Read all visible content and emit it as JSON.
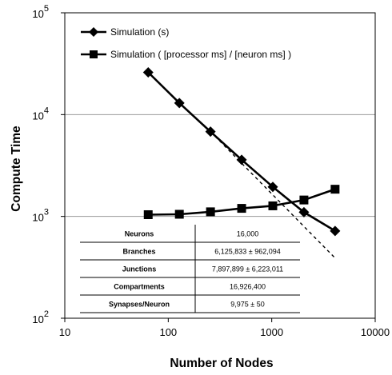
{
  "chart_data": {
    "type": "line",
    "xlabel": "Number of Nodes",
    "ylabel": "Compute Time",
    "x_scale": "log",
    "y_scale": "log",
    "xlim": [
      10,
      10000
    ],
    "ylim": [
      100,
      100000
    ],
    "grid": "horizontal",
    "legend_position": "top-left",
    "x_ticks": [
      "10",
      "100",
      "1000",
      "10000"
    ],
    "y_ticks": [
      {
        "base": "10",
        "exp": "2"
      },
      {
        "base": "10",
        "exp": "3"
      },
      {
        "base": "10",
        "exp": "4"
      },
      {
        "base": "10",
        "exp": "5"
      }
    ],
    "series": [
      {
        "name": "Simulation (s)",
        "marker": "diamond",
        "color": "#000000",
        "x": [
          64,
          128,
          256,
          512,
          1024,
          2048,
          4096
        ],
        "y": [
          26000,
          13000,
          6800,
          3600,
          1950,
          1100,
          720
        ]
      },
      {
        "name": "Simulation ( [processor ms] / [neuron ms] )",
        "marker": "square",
        "color": "#000000",
        "x": [
          64,
          128,
          256,
          512,
          1024,
          2048,
          4096
        ],
        "y": [
          1040,
          1050,
          1110,
          1200,
          1270,
          1450,
          1850
        ]
      }
    ],
    "reference_line": {
      "style": "dashed",
      "x": [
        256,
        4096
      ],
      "y": [
        6800,
        390
      ]
    },
    "table": [
      {
        "label": "Neurons",
        "value": "16,000"
      },
      {
        "label": "Branches",
        "value": "6,125,833 ± 962,094"
      },
      {
        "label": "Junctions",
        "value": "7,897,899  ± 6,223,011"
      },
      {
        "label": "Compartments",
        "value": "16,926,400"
      },
      {
        "label": "Synapses/Neuron",
        "value": "9,975 ± 50"
      }
    ]
  }
}
